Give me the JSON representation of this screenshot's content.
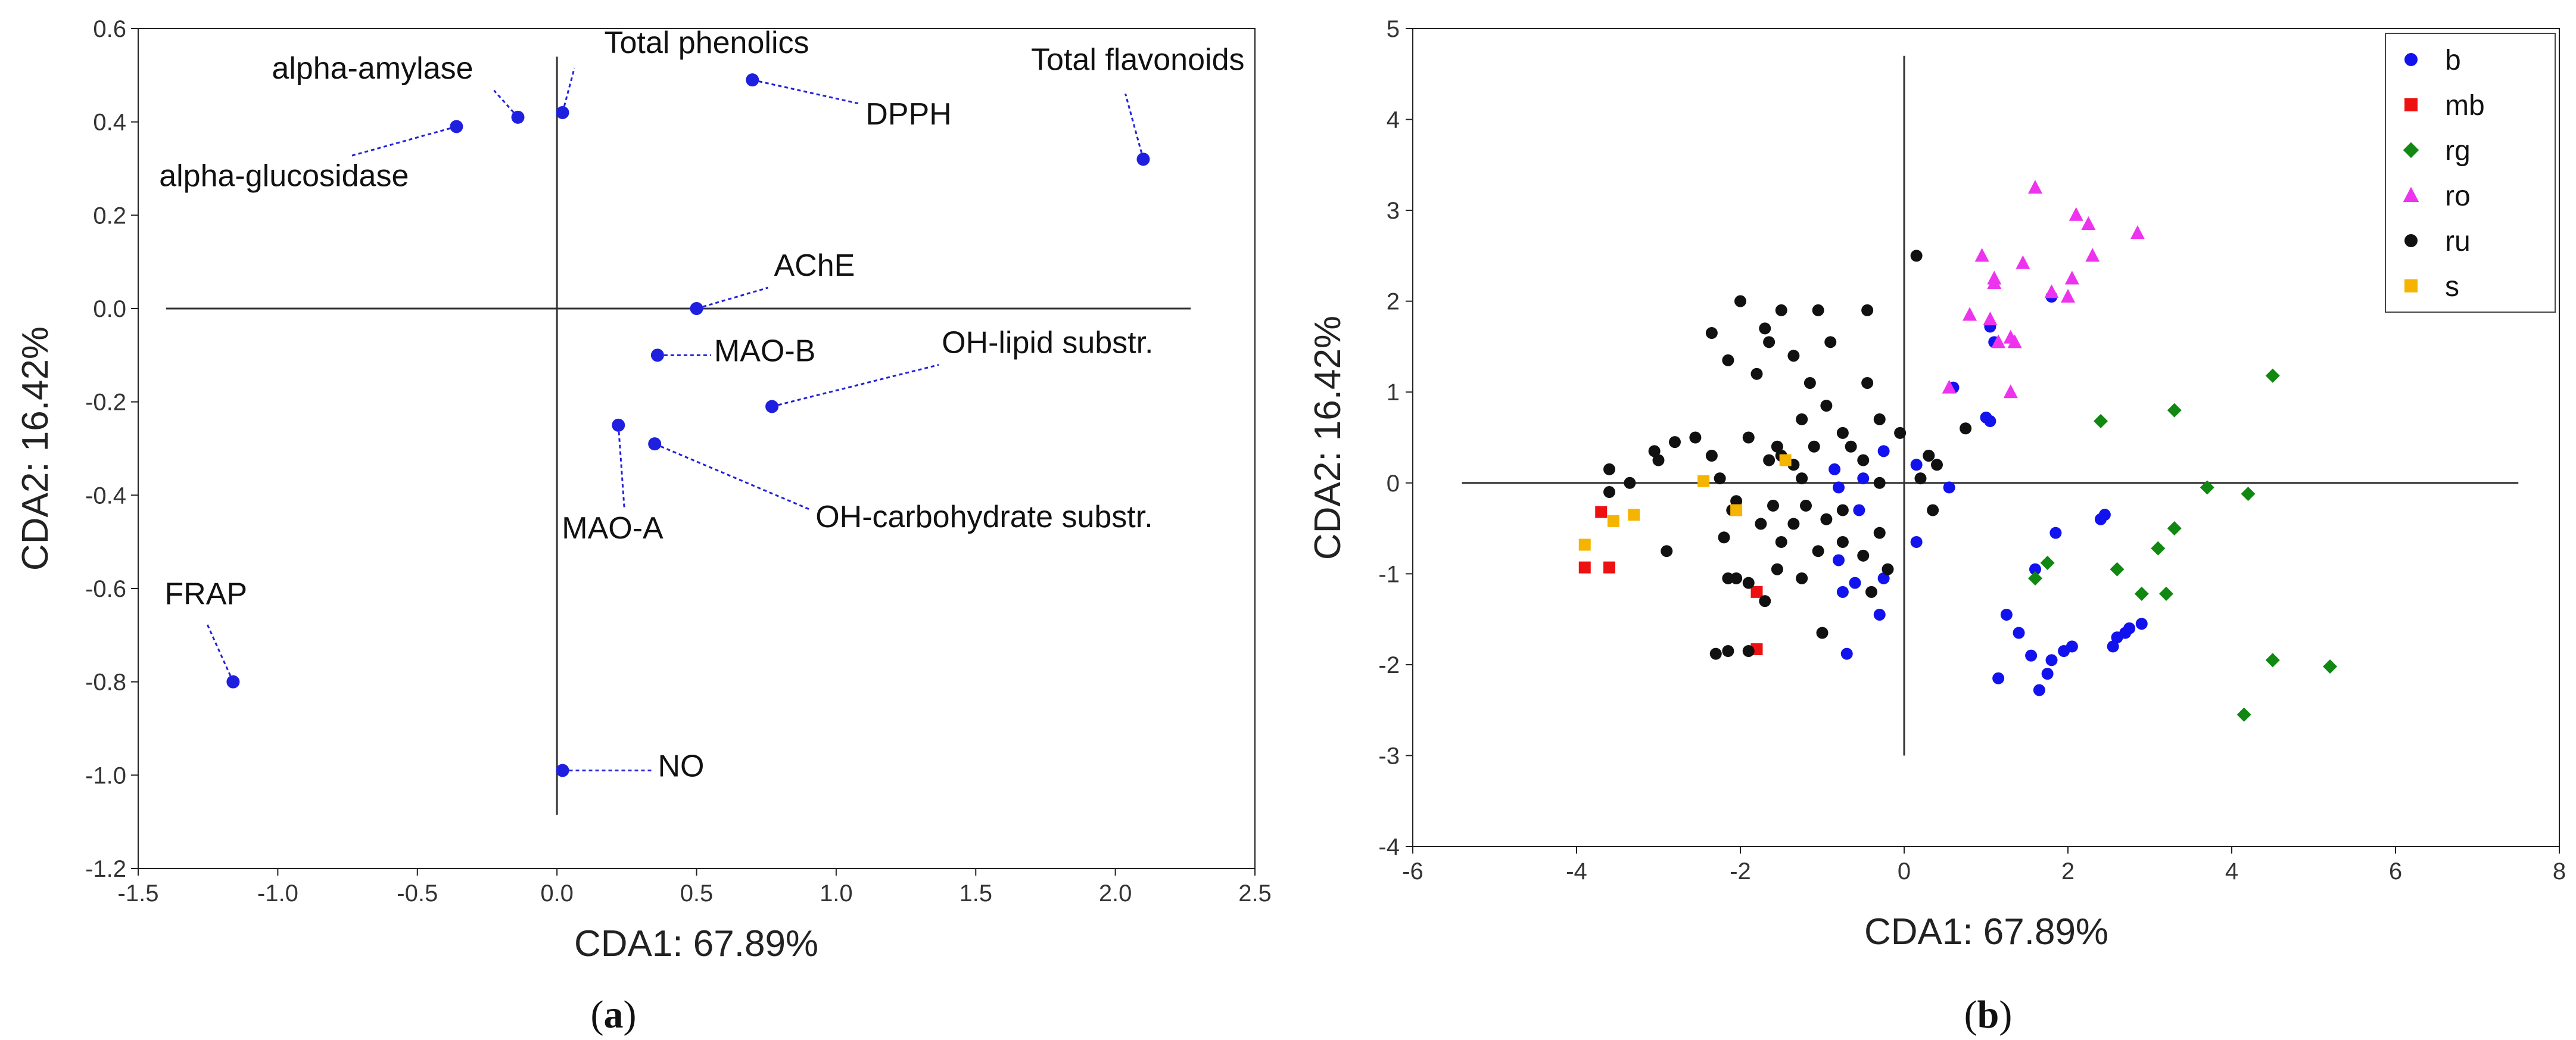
{
  "chart_data": [
    {
      "type": "scatter",
      "panel_label": "a",
      "xlabel": "CDA1: 67.89%",
      "ylabel": "CDA2: 16.42%",
      "xlim": [
        -1.5,
        2.5
      ],
      "ylim": [
        -1.2,
        0.6
      ],
      "xticks": [
        "-1.5",
        "-1.0",
        "-0.5",
        "0.0",
        "0.5",
        "1.0",
        "1.5",
        "2.0",
        "2.5"
      ],
      "yticks": [
        "0.6",
        "0.4",
        "0.2",
        "0.0",
        "-0.2",
        "-0.4",
        "-0.6",
        "-0.8",
        "-1.0",
        "-1.2"
      ],
      "point_color": "#1f1fe0",
      "points": [
        {
          "name": "Total phenolics",
          "x": 0.02,
          "y": 0.42
        },
        {
          "name": "alpha-amylase",
          "x": -0.14,
          "y": 0.41
        },
        {
          "name": "alpha-glucosidase",
          "x": -0.36,
          "y": 0.39
        },
        {
          "name": "DPPH",
          "x": 0.7,
          "y": 0.49
        },
        {
          "name": "Total flavonoids",
          "x": 2.1,
          "y": 0.32
        },
        {
          "name": "AChE",
          "x": 0.5,
          "y": 0.0
        },
        {
          "name": "MAO-B",
          "x": 0.36,
          "y": -0.1
        },
        {
          "name": "OH-lipid substr.",
          "x": 0.77,
          "y": -0.21
        },
        {
          "name": "MAO-A",
          "x": 0.22,
          "y": -0.25
        },
        {
          "name": "OH-carbohydrate substr.",
          "x": 0.35,
          "y": -0.29
        },
        {
          "name": "FRAP",
          "x": -1.16,
          "y": -0.8
        },
        {
          "name": "NO",
          "x": 0.02,
          "y": -0.99
        }
      ]
    },
    {
      "type": "scatter",
      "panel_label": "b",
      "xlabel": "CDA1: 67.89%",
      "ylabel": "CDA2: 16.42%",
      "xlim": [
        -6,
        8
      ],
      "ylim": [
        -4,
        5
      ],
      "xticks": [
        "-6",
        "-4",
        "-2",
        "0",
        "2",
        "4",
        "6",
        "8"
      ],
      "yticks": [
        "5",
        "4",
        "3",
        "2",
        "1",
        "0",
        "-1",
        "-2",
        "-3",
        "-4"
      ],
      "legend_position": "top-right",
      "series": [
        {
          "name": "b",
          "color": "#1212ee",
          "marker": "circle",
          "points": [
            [
              1.8,
              2.05
            ],
            [
              1.05,
              1.72
            ],
            [
              1.1,
              1.55
            ],
            [
              0.6,
              1.05
            ],
            [
              1.0,
              0.72
            ],
            [
              1.05,
              0.68
            ],
            [
              0.3,
              0.3
            ],
            [
              0.15,
              0.2
            ],
            [
              -0.25,
              0.35
            ],
            [
              0.55,
              -0.05
            ],
            [
              -0.8,
              -0.05
            ],
            [
              -0.5,
              0.05
            ],
            [
              -0.85,
              0.15
            ],
            [
              -0.55,
              -0.3
            ],
            [
              0.15,
              -0.65
            ],
            [
              -0.8,
              -0.85
            ],
            [
              -0.6,
              -1.1
            ],
            [
              -0.25,
              -1.05
            ],
            [
              -0.75,
              -1.2
            ],
            [
              -0.3,
              -1.45
            ],
            [
              -0.7,
              -1.88
            ],
            [
              2.45,
              -0.35
            ],
            [
              2.4,
              -0.4
            ],
            [
              1.85,
              -0.55
            ],
            [
              1.6,
              -0.95
            ],
            [
              1.25,
              -1.45
            ],
            [
              1.4,
              -1.65
            ],
            [
              1.55,
              -1.9
            ],
            [
              1.8,
              -1.95
            ],
            [
              1.95,
              -1.85
            ],
            [
              2.05,
              -1.8
            ],
            [
              1.75,
              -2.1
            ],
            [
              1.15,
              -2.15
            ],
            [
              1.65,
              -2.28
            ],
            [
              2.6,
              -1.7
            ],
            [
              2.7,
              -1.65
            ],
            [
              2.9,
              -1.55
            ],
            [
              2.75,
              -1.6
            ],
            [
              2.55,
              -1.8
            ]
          ]
        },
        {
          "name": "mb",
          "color": "#ee1111",
          "marker": "square",
          "points": [
            [
              -3.7,
              -0.32
            ],
            [
              -3.9,
              -0.93
            ],
            [
              -3.6,
              -0.93
            ],
            [
              -1.8,
              -1.2
            ],
            [
              -1.8,
              -1.83
            ]
          ]
        },
        {
          "name": "rg",
          "color": "#118811",
          "marker": "diamond",
          "points": [
            [
              4.5,
              1.18
            ],
            [
              3.3,
              0.8
            ],
            [
              2.4,
              0.68
            ],
            [
              3.7,
              -0.05
            ],
            [
              4.2,
              -0.12
            ],
            [
              3.3,
              -0.5
            ],
            [
              3.1,
              -0.72
            ],
            [
              2.6,
              -0.95
            ],
            [
              1.75,
              -0.88
            ],
            [
              1.6,
              -1.05
            ],
            [
              2.9,
              -1.22
            ],
            [
              3.2,
              -1.22
            ],
            [
              4.5,
              -1.95
            ],
            [
              5.2,
              -2.02
            ],
            [
              4.15,
              -2.55
            ]
          ]
        },
        {
          "name": "ro",
          "color": "#ee33ee",
          "marker": "triangle",
          "points": [
            [
              1.6,
              3.25
            ],
            [
              2.1,
              2.95
            ],
            [
              2.25,
              2.85
            ],
            [
              2.85,
              2.75
            ],
            [
              2.3,
              2.5
            ],
            [
              0.95,
              2.5
            ],
            [
              1.45,
              2.42
            ],
            [
              2.05,
              2.25
            ],
            [
              1.1,
              2.25
            ],
            [
              1.1,
              2.2
            ],
            [
              1.8,
              2.1
            ],
            [
              0.8,
              1.85
            ],
            [
              1.05,
              1.8
            ],
            [
              2.0,
              2.05
            ],
            [
              1.3,
              1.6
            ],
            [
              1.15,
              1.55
            ],
            [
              1.35,
              1.55
            ],
            [
              0.55,
              1.05
            ],
            [
              1.3,
              1.0
            ]
          ]
        },
        {
          "name": "ru",
          "color": "#111111",
          "marker": "circle",
          "points": [
            [
              0.15,
              2.5
            ],
            [
              -2.0,
              2.0
            ],
            [
              -1.5,
              1.9
            ],
            [
              -1.05,
              1.9
            ],
            [
              -0.45,
              1.9
            ],
            [
              -1.7,
              1.7
            ],
            [
              -2.35,
              1.65
            ],
            [
              -1.65,
              1.55
            ],
            [
              -0.9,
              1.55
            ],
            [
              -1.35,
              1.4
            ],
            [
              -2.15,
              1.35
            ],
            [
              -1.8,
              1.2
            ],
            [
              -1.15,
              1.1
            ],
            [
              -0.45,
              1.1
            ],
            [
              -0.95,
              0.85
            ],
            [
              -1.25,
              0.7
            ],
            [
              -0.3,
              0.7
            ],
            [
              -1.9,
              0.5
            ],
            [
              -2.55,
              0.5
            ],
            [
              -0.75,
              0.55
            ],
            [
              -0.05,
              0.55
            ],
            [
              -2.8,
              0.45
            ],
            [
              -1.55,
              0.4
            ],
            [
              -1.1,
              0.4
            ],
            [
              -0.65,
              0.4
            ],
            [
              -1.5,
              0.3
            ],
            [
              -2.35,
              0.3
            ],
            [
              -1.65,
              0.25
            ],
            [
              -1.35,
              0.2
            ],
            [
              -0.5,
              0.25
            ],
            [
              0.3,
              0.3
            ],
            [
              0.4,
              0.2
            ],
            [
              0.75,
              0.6
            ],
            [
              -3.0,
              0.25
            ],
            [
              -3.05,
              0.35
            ],
            [
              -3.6,
              0.15
            ],
            [
              -3.35,
              0.0
            ],
            [
              -3.6,
              -0.1
            ],
            [
              -2.25,
              0.05
            ],
            [
              -1.25,
              0.05
            ],
            [
              -0.3,
              0.0
            ],
            [
              0.2,
              0.05
            ],
            [
              -2.05,
              -0.2
            ],
            [
              -2.1,
              -0.3
            ],
            [
              -1.6,
              -0.25
            ],
            [
              -1.2,
              -0.25
            ],
            [
              -0.75,
              -0.3
            ],
            [
              0.35,
              -0.3
            ],
            [
              -1.75,
              -0.45
            ],
            [
              -1.35,
              -0.45
            ],
            [
              -0.95,
              -0.4
            ],
            [
              -0.3,
              -0.55
            ],
            [
              -2.2,
              -0.6
            ],
            [
              -1.5,
              -0.65
            ],
            [
              -0.75,
              -0.65
            ],
            [
              -2.9,
              -0.75
            ],
            [
              -1.05,
              -0.75
            ],
            [
              -0.5,
              -0.8
            ],
            [
              -0.2,
              -0.95
            ],
            [
              -1.55,
              -0.95
            ],
            [
              -1.9,
              -1.1
            ],
            [
              -2.15,
              -1.05
            ],
            [
              -2.05,
              -1.05
            ],
            [
              -1.25,
              -1.05
            ],
            [
              -0.4,
              -1.2
            ],
            [
              -1.7,
              -1.3
            ],
            [
              -1.0,
              -1.65
            ],
            [
              -2.15,
              -1.85
            ],
            [
              -1.9,
              -1.85
            ],
            [
              -2.3,
              -1.88
            ]
          ]
        },
        {
          "name": "s",
          "color": "#f5b400",
          "marker": "square",
          "points": [
            [
              -3.9,
              -0.68
            ],
            [
              -3.55,
              -0.42
            ],
            [
              -3.3,
              -0.35
            ],
            [
              -2.45,
              0.02
            ],
            [
              -2.05,
              -0.3
            ],
            [
              -1.45,
              0.25
            ]
          ]
        }
      ]
    }
  ]
}
